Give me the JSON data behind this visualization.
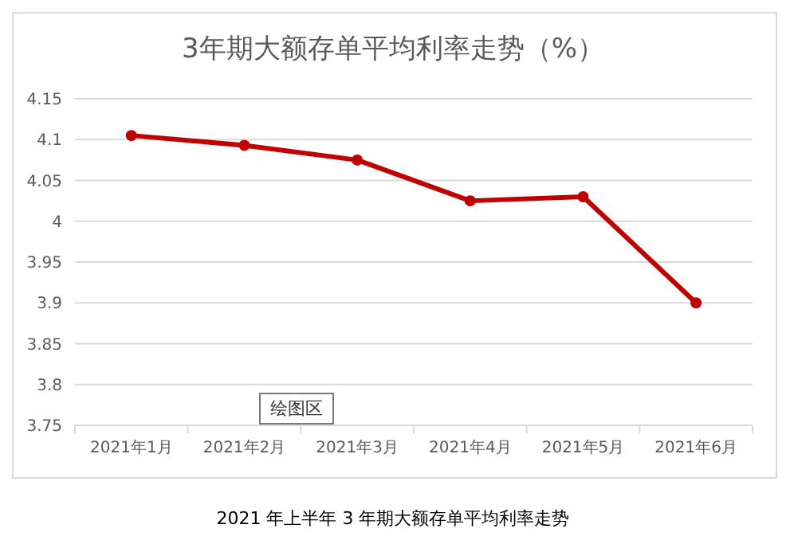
{
  "chart_data": {
    "type": "line",
    "title": "3年期大额存单平均利率走势（%）",
    "categories": [
      "2021年1月",
      "2021年2月",
      "2021年3月",
      "2021年4月",
      "2021年5月",
      "2021年6月"
    ],
    "series": [
      {
        "color": "#c00000",
        "values": [
          4.105,
          4.093,
          4.075,
          4.025,
          4.03,
          3.9
        ]
      }
    ],
    "ylim": [
      3.75,
      4.15
    ],
    "yticks": [
      3.75,
      3.8,
      3.85,
      3.9,
      3.95,
      4,
      4.05,
      4.1,
      4.15
    ],
    "grid": "y",
    "marker": "circle",
    "line_style": "solid",
    "annotations": [
      "绘图区",
      "2021 年上半年 3 年期大额存单平均利率走势"
    ]
  }
}
